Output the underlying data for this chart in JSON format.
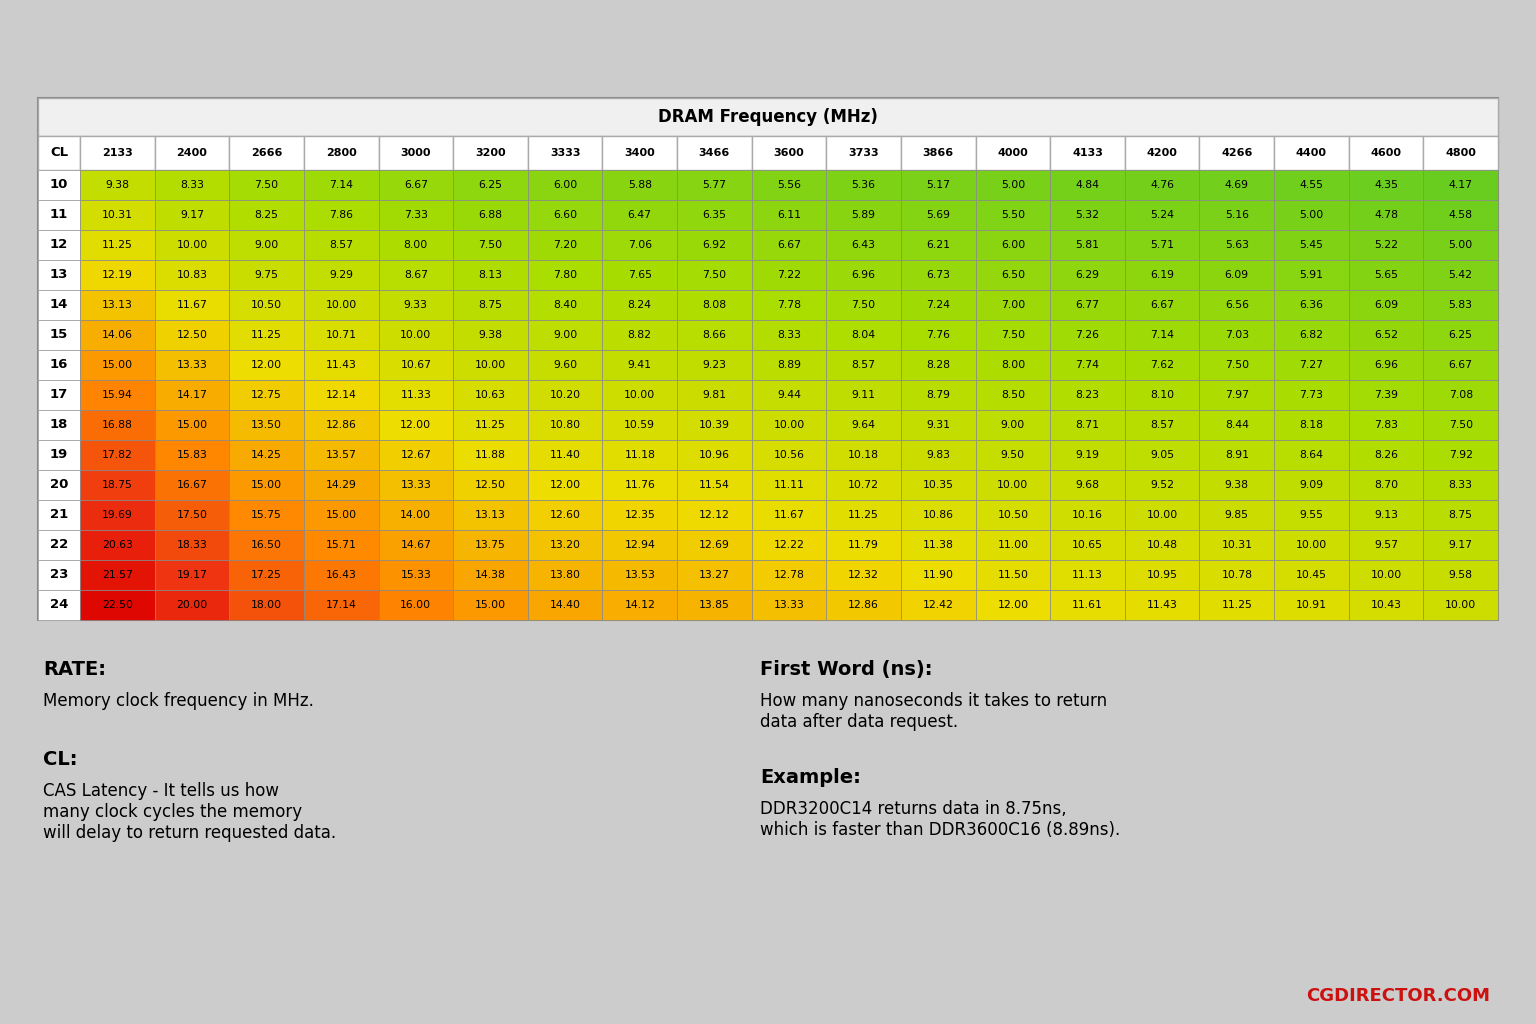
{
  "title": "DRAM Frequency (MHz)",
  "bg_color": "#cccccc",
  "frequencies": [
    2133,
    2400,
    2666,
    2800,
    3000,
    3200,
    3333,
    3400,
    3466,
    3600,
    3733,
    3866,
    4000,
    4133,
    4200,
    4266,
    4400,
    4600,
    4800
  ],
  "cl_values": [
    10,
    11,
    12,
    13,
    14,
    15,
    16,
    17,
    18,
    19,
    20,
    21,
    22,
    23,
    24
  ],
  "data": [
    [
      9.38,
      8.33,
      7.5,
      7.14,
      6.67,
      6.25,
      6.0,
      5.88,
      5.77,
      5.56,
      5.36,
      5.17,
      5.0,
      4.84,
      4.76,
      4.69,
      4.55,
      4.35,
      4.17
    ],
    [
      10.31,
      9.17,
      8.25,
      7.86,
      7.33,
      6.88,
      6.6,
      6.47,
      6.35,
      6.11,
      5.89,
      5.69,
      5.5,
      5.32,
      5.24,
      5.16,
      5.0,
      4.78,
      4.58
    ],
    [
      11.25,
      10.0,
      9.0,
      8.57,
      8.0,
      7.5,
      7.2,
      7.06,
      6.92,
      6.67,
      6.43,
      6.21,
      6.0,
      5.81,
      5.71,
      5.63,
      5.45,
      5.22,
      5.0
    ],
    [
      12.19,
      10.83,
      9.75,
      9.29,
      8.67,
      8.13,
      7.8,
      7.65,
      7.5,
      7.22,
      6.96,
      6.73,
      6.5,
      6.29,
      6.19,
      6.09,
      5.91,
      5.65,
      5.42
    ],
    [
      13.13,
      11.67,
      10.5,
      10.0,
      9.33,
      8.75,
      8.4,
      8.24,
      8.08,
      7.78,
      7.5,
      7.24,
      7.0,
      6.77,
      6.67,
      6.56,
      6.36,
      6.09,
      5.83
    ],
    [
      14.06,
      12.5,
      11.25,
      10.71,
      10.0,
      9.38,
      9.0,
      8.82,
      8.66,
      8.33,
      8.04,
      7.76,
      7.5,
      7.26,
      7.14,
      7.03,
      6.82,
      6.52,
      6.25
    ],
    [
      15.0,
      13.33,
      12.0,
      11.43,
      10.67,
      10.0,
      9.6,
      9.41,
      9.23,
      8.89,
      8.57,
      8.28,
      8.0,
      7.74,
      7.62,
      7.5,
      7.27,
      6.96,
      6.67
    ],
    [
      15.94,
      14.17,
      12.75,
      12.14,
      11.33,
      10.63,
      10.2,
      10.0,
      9.81,
      9.44,
      9.11,
      8.79,
      8.5,
      8.23,
      8.1,
      7.97,
      7.73,
      7.39,
      7.08
    ],
    [
      16.88,
      15.0,
      13.5,
      12.86,
      12.0,
      11.25,
      10.8,
      10.59,
      10.39,
      10.0,
      9.64,
      9.31,
      9.0,
      8.71,
      8.57,
      8.44,
      8.18,
      7.83,
      7.5
    ],
    [
      17.82,
      15.83,
      14.25,
      13.57,
      12.67,
      11.88,
      11.4,
      11.18,
      10.96,
      10.56,
      10.18,
      9.83,
      9.5,
      9.19,
      9.05,
      8.91,
      8.64,
      8.26,
      7.92
    ],
    [
      18.75,
      16.67,
      15.0,
      14.29,
      13.33,
      12.5,
      12.0,
      11.76,
      11.54,
      11.11,
      10.72,
      10.35,
      10.0,
      9.68,
      9.52,
      9.38,
      9.09,
      8.7,
      8.33
    ],
    [
      19.69,
      17.5,
      15.75,
      15.0,
      14.0,
      13.13,
      12.6,
      12.35,
      12.12,
      11.67,
      11.25,
      10.86,
      10.5,
      10.16,
      10.0,
      9.85,
      9.55,
      9.13,
      8.75
    ],
    [
      20.63,
      18.33,
      16.5,
      15.71,
      14.67,
      13.75,
      13.2,
      12.94,
      12.69,
      12.22,
      11.79,
      11.38,
      11.0,
      10.65,
      10.48,
      10.31,
      10.0,
      9.57,
      9.17
    ],
    [
      21.57,
      19.17,
      17.25,
      16.43,
      15.33,
      14.38,
      13.8,
      13.53,
      13.27,
      12.78,
      12.32,
      11.9,
      11.5,
      11.13,
      10.95,
      10.78,
      10.45,
      10.0,
      9.58
    ],
    [
      22.5,
      20.0,
      18.0,
      17.14,
      16.0,
      15.0,
      14.4,
      14.12,
      13.85,
      13.33,
      12.86,
      12.42,
      12.0,
      11.61,
      11.43,
      11.25,
      10.91,
      10.43,
      10.0
    ]
  ],
  "note_rate_title": "RATE:",
  "note_rate_text": "Memory clock frequency in MHz.",
  "note_cl_title": "CL:",
  "note_cl_text": "CAS Latency - It tells us how\nmany clock cycles the memory\nwill delay to return requested data.",
  "note_fw_title": "First Word (ns):",
  "note_fw_text": "How many nanoseconds it takes to return\ndata after data request.",
  "note_ex_title": "Example:",
  "note_ex_text": "DDR3200C14 returns data in 8.75ns,\nwhich is faster than DDR3600C16 (8.89ns).",
  "footer": "CGDIRECTOR.COM"
}
